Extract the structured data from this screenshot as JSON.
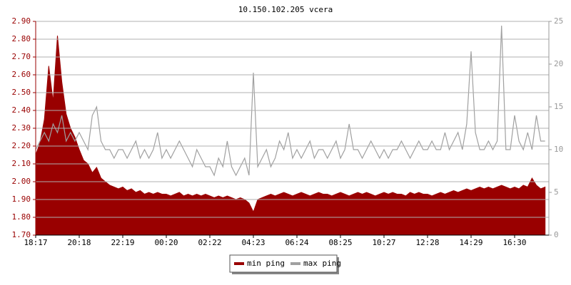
{
  "chart_data": {
    "type": "line",
    "title": "10.150.102.205 vcera",
    "categories": [
      "18:17",
      null,
      null,
      null,
      null,
      null,
      null,
      null,
      null,
      null,
      "20:18",
      null,
      null,
      null,
      null,
      null,
      null,
      null,
      null,
      null,
      "22:19",
      null,
      null,
      null,
      null,
      null,
      null,
      null,
      null,
      null,
      "00:20",
      null,
      null,
      null,
      null,
      null,
      null,
      null,
      null,
      null,
      "02:22",
      null,
      null,
      null,
      null,
      null,
      null,
      null,
      null,
      null,
      "04:23",
      null,
      null,
      null,
      null,
      null,
      null,
      null,
      null,
      null,
      "06:24",
      null,
      null,
      null,
      null,
      null,
      null,
      null,
      null,
      null,
      "08:25",
      null,
      null,
      null,
      null,
      null,
      null,
      null,
      null,
      null,
      "10:27",
      null,
      null,
      null,
      null,
      null,
      null,
      null,
      null,
      null,
      "12:28",
      null,
      null,
      null,
      null,
      null,
      null,
      null,
      null,
      null,
      "14:29",
      null,
      null,
      null,
      null,
      null,
      null,
      null,
      null,
      null,
      "16:30",
      null,
      null,
      null,
      null,
      null,
      null,
      null
    ],
    "series": [
      {
        "name": "min ping",
        "color": "#990000",
        "fill": true,
        "values": [
          2.15,
          2.22,
          2.35,
          2.65,
          2.45,
          2.82,
          2.56,
          2.38,
          2.3,
          2.25,
          2.18,
          2.12,
          2.1,
          2.05,
          2.08,
          2.02,
          2.0,
          1.98,
          1.97,
          1.96,
          1.97,
          1.95,
          1.96,
          1.94,
          1.95,
          1.93,
          1.94,
          1.93,
          1.94,
          1.93,
          1.93,
          1.92,
          1.93,
          1.94,
          1.92,
          1.93,
          1.92,
          1.93,
          1.92,
          1.93,
          1.92,
          1.91,
          1.92,
          1.91,
          1.92,
          1.91,
          1.9,
          1.91,
          1.9,
          1.88,
          1.83,
          1.9,
          1.91,
          1.92,
          1.93,
          1.92,
          1.93,
          1.94,
          1.93,
          1.92,
          1.93,
          1.94,
          1.93,
          1.92,
          1.93,
          1.94,
          1.93,
          1.93,
          1.92,
          1.93,
          1.94,
          1.93,
          1.92,
          1.93,
          1.94,
          1.93,
          1.94,
          1.93,
          1.92,
          1.93,
          1.94,
          1.93,
          1.94,
          1.93,
          1.93,
          1.92,
          1.94,
          1.93,
          1.94,
          1.93,
          1.93,
          1.92,
          1.93,
          1.94,
          1.93,
          1.94,
          1.95,
          1.94,
          1.95,
          1.96,
          1.95,
          1.96,
          1.97,
          1.96,
          1.97,
          1.96,
          1.97,
          1.98,
          1.97,
          1.96,
          1.97,
          1.96,
          1.98,
          1.97,
          2.02,
          1.98,
          1.96,
          1.97
        ]
      },
      {
        "name": "max ping",
        "color": "#a0a0a0",
        "axis": "y2",
        "values": [
          10,
          11,
          12,
          11,
          13,
          12,
          14,
          11,
          12,
          11,
          12,
          11,
          10,
          14,
          15,
          11,
          10,
          10,
          9,
          10,
          10,
          9,
          10,
          11,
          9,
          10,
          9,
          10,
          12,
          9,
          10,
          9,
          10,
          11,
          10,
          9,
          8,
          10,
          9,
          8,
          8,
          7,
          9,
          8,
          11,
          8,
          7,
          8,
          9,
          7,
          19,
          8,
          9,
          10,
          8,
          9,
          11,
          10,
          12,
          9,
          10,
          9,
          10,
          11,
          9,
          10,
          10,
          9,
          10,
          11,
          9,
          10,
          13,
          10,
          10,
          9,
          10,
          11,
          10,
          9,
          10,
          9,
          10,
          10,
          11,
          10,
          9,
          10,
          11,
          10,
          10,
          11,
          10,
          10,
          12,
          10,
          11,
          12,
          10,
          13,
          21.5,
          12,
          10,
          10,
          11,
          10,
          11,
          24.5,
          10,
          10,
          14,
          11,
          10,
          12,
          10,
          14,
          11,
          11
        ]
      }
    ],
    "ylim": [
      1.7,
      2.9
    ],
    "yticks": [
      {
        "value": 1.7,
        "label": "1.70"
      },
      {
        "value": 1.8,
        "label": "1.80"
      },
      {
        "value": 1.9,
        "label": "1.90"
      },
      {
        "value": 2.0,
        "label": "2.00"
      },
      {
        "value": 2.1,
        "label": "2.10"
      },
      {
        "value": 2.2,
        "label": "2.20"
      },
      {
        "value": 2.3,
        "label": "2.30"
      },
      {
        "value": 2.4,
        "label": "2.40"
      },
      {
        "value": 2.5,
        "label": "2.50"
      },
      {
        "value": 2.6,
        "label": "2.60"
      },
      {
        "value": 2.7,
        "label": "2.70"
      },
      {
        "value": 2.8,
        "label": "2.80"
      },
      {
        "value": 2.9,
        "label": "2.90"
      }
    ],
    "y2lim": [
      0,
      25
    ],
    "y2ticks": [
      0,
      5,
      10,
      15,
      20,
      25
    ],
    "grid": true,
    "legend": "bottom"
  }
}
